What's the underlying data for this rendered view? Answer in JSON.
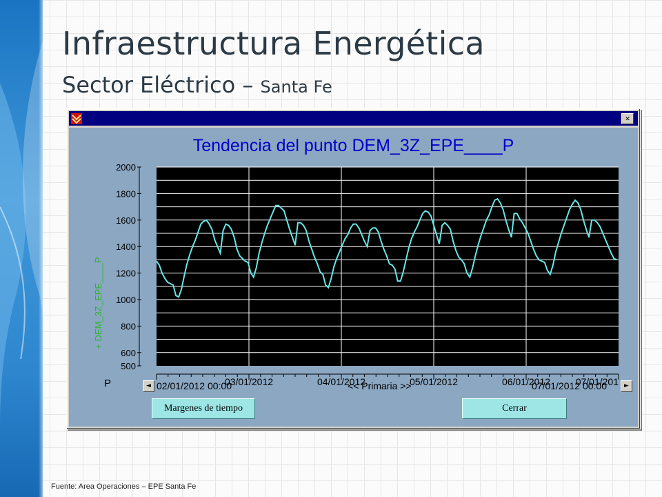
{
  "slide": {
    "title": "Infraestructura Energética",
    "subtitle_main": "Sector Eléctrico – ",
    "subtitle_small": "Santa Fe",
    "source": "Fuente: Area Operaciones – EPE Santa Fe"
  },
  "window": {
    "close_glyph": "✕",
    "icon": "app-logo-icon"
  },
  "chart_data": {
    "type": "line",
    "title": "Tendencia del punto DEM_3Z_EPE____P",
    "ylabel": "+ DEM_3Z_EPE____P",
    "unit_label": "P",
    "ylim": [
      500,
      2000
    ],
    "y_ticks": [
      "2000",
      "1800",
      "1600",
      "1400",
      "1200",
      "1000",
      "800",
      "600",
      "500"
    ],
    "y_tick_values": [
      2000,
      1800,
      1600,
      1400,
      1200,
      1000,
      800,
      600,
      500
    ],
    "x_ticks": [
      "03/01/2012",
      "04/01/2012",
      "05/01/2012",
      "06/01/2012",
      "07/01/201"
    ],
    "x_range_days": [
      0,
      5
    ],
    "x_tick_days": [
      1,
      2,
      3,
      4,
      5
    ],
    "grid": true,
    "background": "#000000",
    "line_color": "#66e6e6",
    "series": [
      {
        "x_days": [
          0.0,
          0.03,
          0.06,
          0.09,
          0.12,
          0.15,
          0.18,
          0.21,
          0.24,
          0.27,
          0.3,
          0.33,
          0.36,
          0.39,
          0.42,
          0.45,
          0.48,
          0.51,
          0.54,
          0.57,
          0.6,
          0.63,
          0.66,
          0.69,
          0.72,
          0.75,
          0.78,
          0.81,
          0.84,
          0.87,
          0.9,
          0.93,
          0.96,
          0.99,
          1.02,
          1.05,
          1.08,
          1.11,
          1.14,
          1.17,
          1.2,
          1.23,
          1.26,
          1.29,
          1.32,
          1.35,
          1.38,
          1.41,
          1.44,
          1.47,
          1.5,
          1.53,
          1.56,
          1.59,
          1.62,
          1.65,
          1.68,
          1.71,
          1.74,
          1.77,
          1.8,
          1.83,
          1.86,
          1.89,
          1.92,
          1.95,
          1.98,
          2.01,
          2.04,
          2.07,
          2.1,
          2.13,
          2.16,
          2.19,
          2.22,
          2.25,
          2.28,
          2.31,
          2.34,
          2.37,
          2.4,
          2.43,
          2.46,
          2.49,
          2.52,
          2.55,
          2.58,
          2.61,
          2.64,
          2.67,
          2.7,
          2.73,
          2.76,
          2.79,
          2.82,
          2.85,
          2.88,
          2.91,
          2.94,
          2.97,
          3.0,
          3.03,
          3.06,
          3.09,
          3.12,
          3.15,
          3.18,
          3.21,
          3.24,
          3.27,
          3.3,
          3.33,
          3.36,
          3.39,
          3.42,
          3.45,
          3.48,
          3.51,
          3.54,
          3.57,
          3.6,
          3.63,
          3.66,
          3.69,
          3.72,
          3.75,
          3.78,
          3.81,
          3.84,
          3.87,
          3.9,
          3.93,
          3.96,
          3.99,
          4.02,
          4.05,
          4.08,
          4.11,
          4.14,
          4.17,
          4.2,
          4.23,
          4.26,
          4.29,
          4.32,
          4.35,
          4.38,
          4.41,
          4.44,
          4.47,
          4.5,
          4.53,
          4.56,
          4.59,
          4.62,
          4.65,
          4.68,
          4.71,
          4.74,
          4.77,
          4.8,
          4.83,
          4.86,
          4.89,
          4.92,
          4.95,
          4.98
        ],
        "values": [
          1290,
          1260,
          1200,
          1160,
          1130,
          1120,
          1110,
          1030,
          1020,
          1080,
          1180,
          1270,
          1340,
          1400,
          1450,
          1510,
          1570,
          1590,
          1600,
          1570,
          1530,
          1450,
          1400,
          1350,
          1520,
          1570,
          1560,
          1530,
          1470,
          1380,
          1330,
          1310,
          1290,
          1280,
          1200,
          1170,
          1240,
          1350,
          1430,
          1500,
          1560,
          1610,
          1660,
          1710,
          1710,
          1690,
          1670,
          1600,
          1530,
          1470,
          1410,
          1580,
          1580,
          1560,
          1520,
          1440,
          1380,
          1320,
          1270,
          1210,
          1190,
          1110,
          1090,
          1160,
          1250,
          1310,
          1360,
          1410,
          1460,
          1490,
          1540,
          1570,
          1570,
          1540,
          1490,
          1440,
          1400,
          1520,
          1540,
          1540,
          1510,
          1440,
          1380,
          1330,
          1270,
          1260,
          1230,
          1140,
          1140,
          1210,
          1300,
          1390,
          1460,
          1510,
          1550,
          1600,
          1650,
          1670,
          1660,
          1630,
          1560,
          1490,
          1420,
          1560,
          1580,
          1560,
          1530,
          1440,
          1370,
          1320,
          1300,
          1270,
          1200,
          1170,
          1240,
          1330,
          1410,
          1480,
          1540,
          1600,
          1640,
          1700,
          1750,
          1760,
          1730,
          1680,
          1600,
          1530,
          1470,
          1650,
          1650,
          1610,
          1580,
          1540,
          1500,
          1440,
          1380,
          1330,
          1300,
          1290,
          1280,
          1220,
          1190,
          1260,
          1360,
          1430,
          1500,
          1560,
          1620,
          1680,
          1720,
          1750,
          1730,
          1680,
          1600,
          1530,
          1470,
          1600,
          1600,
          1580,
          1550,
          1500,
          1450,
          1400,
          1350,
          1310,
          1300
        ]
      }
    ]
  },
  "scroll": {
    "start_label": "02/01/2012 00:00",
    "center_label": "<< Primaria >>",
    "end_label": "07/01/2012 00:00",
    "left_glyph": "◄",
    "right_glyph": "►"
  },
  "buttons": {
    "time_margins": "Margenes de tiempo",
    "close": "Cerrar"
  }
}
